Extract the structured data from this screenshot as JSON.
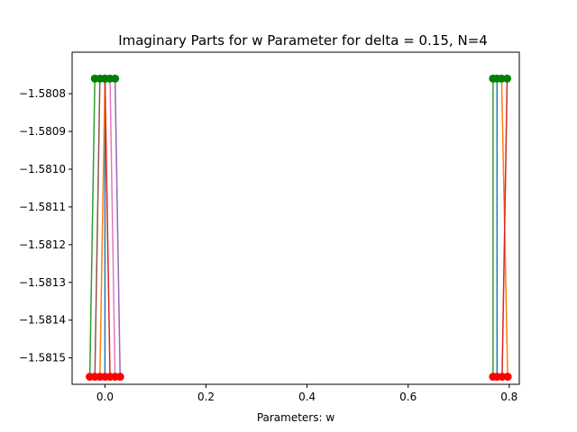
{
  "chart_data": {
    "type": "line",
    "title": "Imaginary Parts for w Parameter for delta = 0.15, N=4",
    "xlabel": "Parameters: w",
    "ylabel": "",
    "xlim": [
      -0.065,
      0.82
    ],
    "ylim": [
      -1.58157,
      -1.58069
    ],
    "x_ticks": [
      0.0,
      0.2,
      0.4,
      0.6,
      0.8
    ],
    "x_tick_labels": [
      "0.0",
      "0.2",
      "0.4",
      "0.6",
      "0.8"
    ],
    "y_ticks": [
      -1.5808,
      -1.5809,
      -1.581,
      -1.5811,
      -1.5812,
      -1.5813,
      -1.5814,
      -1.5815
    ],
    "y_tick_labels": [
      "−1.5808",
      "−1.5809",
      "−1.5810",
      "−1.5811",
      "−1.5812",
      "−1.5813",
      "−1.5814",
      "−1.5815"
    ],
    "grid": false,
    "legend": "none",
    "start_marker_color": "#ff0000",
    "end_marker_color": "#008000",
    "series": [
      {
        "color": "#1f77b4",
        "x": [
          0.0,
          0.0
        ],
        "y": [
          -1.58155,
          -1.58076
        ]
      },
      {
        "color": "#ff7f0e",
        "x": [
          -0.01,
          0.0
        ],
        "y": [
          -1.58155,
          -1.58076
        ]
      },
      {
        "color": "#2ca02c",
        "x": [
          -0.03,
          -0.02
        ],
        "y": [
          -1.58155,
          -1.58076
        ]
      },
      {
        "color": "#d62728",
        "x": [
          0.01,
          0.0
        ],
        "y": [
          -1.58155,
          -1.58076
        ]
      },
      {
        "color": "#9467bd",
        "x": [
          0.03,
          0.02
        ],
        "y": [
          -1.58155,
          -1.58076
        ]
      },
      {
        "color": "#8c564b",
        "x": [
          -0.02,
          -0.01
        ],
        "y": [
          -1.58155,
          -1.58076
        ]
      },
      {
        "color": "#e377c2",
        "x": [
          0.02,
          0.01
        ],
        "y": [
          -1.58155,
          -1.58076
        ]
      },
      {
        "color": "#1f77b4",
        "x": [
          0.776,
          0.776
        ],
        "y": [
          -1.58155,
          -1.58076
        ]
      },
      {
        "color": "#ff7f0e",
        "x": [
          0.797,
          0.785
        ],
        "y": [
          -1.58155,
          -1.58076
        ]
      },
      {
        "color": "#2ca02c",
        "x": [
          0.768,
          0.768
        ],
        "y": [
          -1.58155,
          -1.58076
        ]
      },
      {
        "color": "#d62728",
        "x": [
          0.786,
          0.796
        ],
        "y": [
          -1.58155,
          -1.58076
        ]
      }
    ]
  }
}
